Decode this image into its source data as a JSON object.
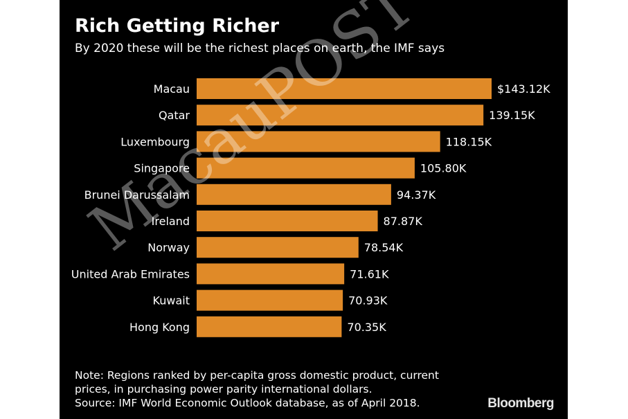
{
  "chart_data": {
    "type": "bar",
    "orientation": "horizontal",
    "title": "Rich Getting Richer",
    "subtitle": "By 2020 these will be the richest places on earth, the IMF says",
    "categories": [
      "Macau",
      "Qatar",
      "Luxembourg",
      "Singapore",
      "Brunei Darussalam",
      "Ireland",
      "Norway",
      "United Arab Emirates",
      "Kuwait",
      "Hong Kong"
    ],
    "values": [
      143.12,
      139.15,
      118.15,
      105.8,
      94.37,
      87.87,
      78.54,
      71.61,
      70.93,
      70.35
    ],
    "data_labels": [
      "$143.12K",
      "139.15K",
      "118.15K",
      "105.80K",
      "94.37K",
      "87.87K",
      "78.54K",
      "71.61K",
      "70.93K",
      "70.35K"
    ],
    "unit": "thousand international dollars",
    "xlim": [
      0,
      143.12
    ],
    "grid": false,
    "bar_color": "#e08a28"
  },
  "note_lines": [
    "Note: Regions ranked by per-capita gross domestic product, current",
    "prices, in purchasing power parity international dollars.",
    "Source: IMF World Economic Outlook database, as of April 2018."
  ],
  "brand": "Bloomberg",
  "watermark": "The MacauPOST Daily",
  "colors": {
    "background": "#000000",
    "text": "#ffffff"
  }
}
